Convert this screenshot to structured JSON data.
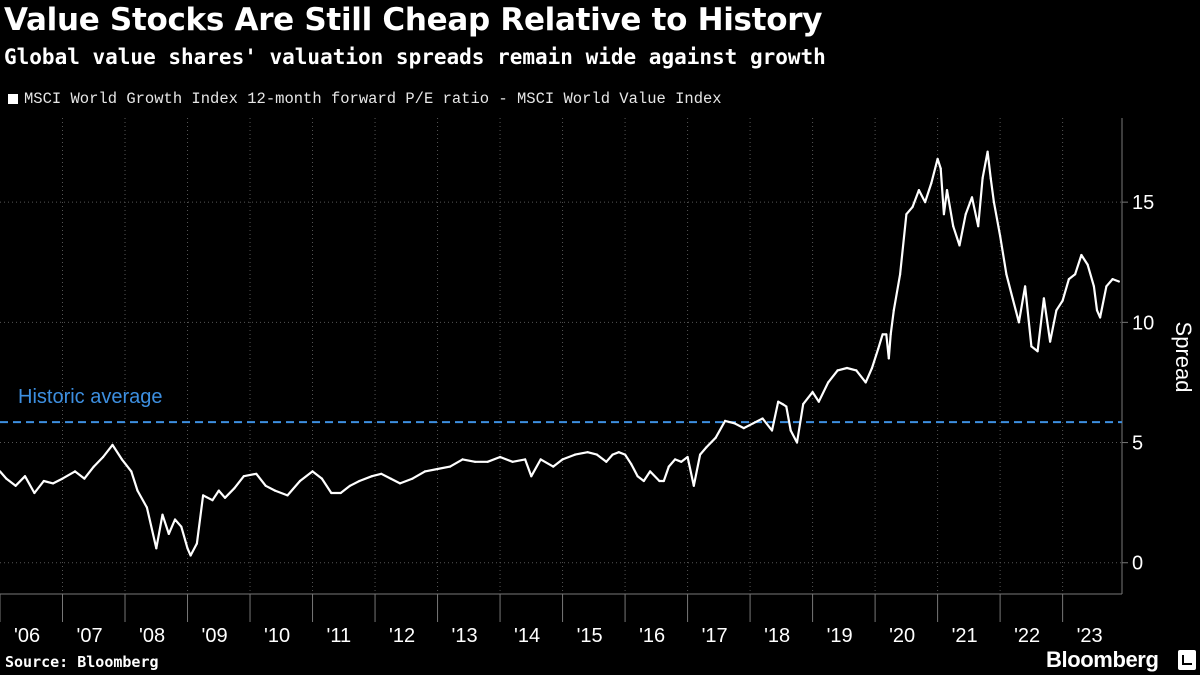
{
  "header": {
    "title": "Value Stocks Are Still Cheap Relative to History",
    "subtitle": "Global value shares' valuation spreads remain wide against growth"
  },
  "footer": {
    "source": "Source: Bloomberg",
    "brand": "Bloomberg"
  },
  "colors": {
    "background": "#000000",
    "series": "#ffffff",
    "average_line": "#3d8fe0",
    "grid": "#555555"
  },
  "chart_data": {
    "type": "line",
    "title": "Value Stocks Are Still Cheap Relative to History",
    "subtitle": "Global value shares' valuation spreads remain wide against growth",
    "xlabel": "",
    "ylabel": "Spread",
    "ylim": [
      -1.3,
      18.5
    ],
    "xlim": [
      2006.0,
      2023.95
    ],
    "yticks": [
      0,
      5,
      10,
      15
    ],
    "xtick_labels": [
      "'06",
      "'07",
      "'08",
      "'09",
      "'10",
      "'11",
      "'12",
      "'13",
      "'14",
      "'15",
      "'16",
      "'17",
      "'18",
      "'19",
      "'20",
      "'21",
      "'22",
      "'23"
    ],
    "xtick_positions": [
      2006,
      2007,
      2008,
      2009,
      2010,
      2011,
      2012,
      2013,
      2014,
      2015,
      2016,
      2017,
      2018,
      2019,
      2020,
      2021,
      2022,
      2023
    ],
    "grid": true,
    "legend_position": "top-left",
    "series": [
      {
        "name": "MSCI World Growth Index 12-month forward P/E ratio - MSCI World Value Index",
        "x": [
          2006.0,
          2006.1,
          2006.25,
          2006.4,
          2006.55,
          2006.7,
          2006.85,
          2007.0,
          2007.2,
          2007.35,
          2007.5,
          2007.65,
          2007.8,
          2007.95,
          2008.1,
          2008.2,
          2008.35,
          2008.5,
          2008.6,
          2008.7,
          2008.8,
          2008.9,
          2009.0,
          2009.05,
          2009.15,
          2009.25,
          2009.4,
          2009.5,
          2009.6,
          2009.75,
          2009.9,
          2010.1,
          2010.25,
          2010.4,
          2010.6,
          2010.8,
          2011.0,
          2011.15,
          2011.3,
          2011.45,
          2011.6,
          2011.75,
          2011.95,
          2012.1,
          2012.25,
          2012.4,
          2012.6,
          2012.8,
          2013.0,
          2013.2,
          2013.4,
          2013.6,
          2013.8,
          2014.0,
          2014.2,
          2014.4,
          2014.5,
          2014.65,
          2014.85,
          2015.0,
          2015.2,
          2015.4,
          2015.55,
          2015.7,
          2015.8,
          2015.9,
          2016.0,
          2016.1,
          2016.2,
          2016.3,
          2016.4,
          2016.55,
          2016.62,
          2016.7,
          2016.8,
          2016.9,
          2017.0,
          2017.1,
          2017.2,
          2017.3,
          2017.45,
          2017.6,
          2017.75,
          2017.9,
          2018.05,
          2018.2,
          2018.35,
          2018.45,
          2018.52,
          2018.58,
          2018.65,
          2018.75,
          2018.85,
          2019.0,
          2019.1,
          2019.25,
          2019.4,
          2019.55,
          2019.7,
          2019.85,
          2019.95,
          2020.05,
          2020.12,
          2020.18,
          2020.22,
          2020.25,
          2020.3,
          2020.4,
          2020.5,
          2020.6,
          2020.7,
          2020.8,
          2020.9,
          2021.0,
          2021.05,
          2021.1,
          2021.15,
          2021.25,
          2021.35,
          2021.45,
          2021.55,
          2021.65,
          2021.72,
          2021.8,
          2021.85,
          2021.9,
          2022.0,
          2022.1,
          2022.2,
          2022.3,
          2022.4,
          2022.5,
          2022.6,
          2022.7,
          2022.8,
          2022.9,
          2023.0,
          2023.1,
          2023.2,
          2023.3,
          2023.4,
          2023.5,
          2023.55,
          2023.6,
          2023.7,
          2023.8,
          2023.9
        ],
        "values": [
          3.8,
          3.5,
          3.2,
          3.6,
          2.9,
          3.4,
          3.3,
          3.5,
          3.8,
          3.5,
          4.0,
          4.4,
          4.9,
          4.3,
          3.8,
          3.0,
          2.3,
          0.6,
          2.0,
          1.2,
          1.8,
          1.5,
          0.6,
          0.3,
          0.8,
          2.8,
          2.6,
          3.0,
          2.7,
          3.1,
          3.6,
          3.7,
          3.2,
          3.0,
          2.8,
          3.4,
          3.8,
          3.5,
          2.9,
          2.9,
          3.2,
          3.4,
          3.6,
          3.7,
          3.5,
          3.3,
          3.5,
          3.8,
          3.9,
          4.0,
          4.3,
          4.2,
          4.2,
          4.4,
          4.2,
          4.3,
          3.6,
          4.3,
          4.0,
          4.3,
          4.5,
          4.6,
          4.5,
          4.2,
          4.5,
          4.6,
          4.5,
          4.1,
          3.6,
          3.4,
          3.8,
          3.4,
          3.4,
          4.0,
          4.3,
          4.2,
          4.4,
          3.2,
          4.5,
          4.8,
          5.2,
          5.9,
          5.8,
          5.6,
          5.8,
          6.0,
          5.5,
          6.7,
          6.6,
          6.5,
          5.5,
          5.0,
          6.6,
          7.1,
          6.7,
          7.5,
          8.0,
          8.1,
          8.0,
          7.5,
          8.1,
          8.9,
          9.5,
          9.5,
          8.5,
          9.5,
          10.5,
          12.0,
          14.5,
          14.8,
          15.5,
          15.0,
          15.8,
          16.8,
          16.4,
          14.5,
          15.5,
          14.0,
          13.2,
          14.5,
          15.2,
          14.0,
          16.0,
          17.1,
          16.0,
          15.0,
          13.6,
          12.0,
          11.0,
          10.0,
          11.5,
          9.0,
          8.8,
          11.0,
          9.2,
          10.5,
          10.9,
          11.8,
          12.0,
          12.8,
          12.4,
          11.5,
          10.5,
          10.2,
          11.5,
          11.8,
          11.7
        ]
      }
    ],
    "reference_line": {
      "label": "Historic average",
      "value": 5.85
    }
  }
}
